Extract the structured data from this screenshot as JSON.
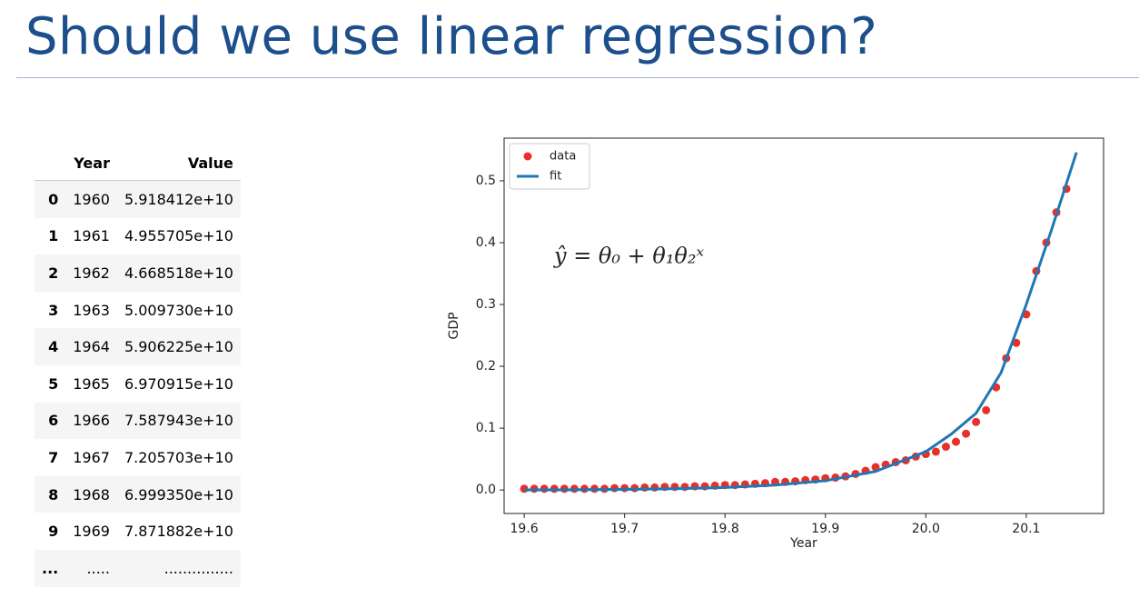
{
  "title": "Should we use linear regression?",
  "table": {
    "columns": [
      "",
      "Year",
      "Value"
    ],
    "rows": [
      [
        "0",
        "1960",
        "5.918412e+10"
      ],
      [
        "1",
        "1961",
        "4.955705e+10"
      ],
      [
        "2",
        "1962",
        "4.668518e+10"
      ],
      [
        "3",
        "1963",
        "5.009730e+10"
      ],
      [
        "4",
        "1964",
        "5.906225e+10"
      ],
      [
        "5",
        "1965",
        "6.970915e+10"
      ],
      [
        "6",
        "1966",
        "7.587943e+10"
      ],
      [
        "7",
        "1967",
        "7.205703e+10"
      ],
      [
        "8",
        "1968",
        "6.999350e+10"
      ],
      [
        "9",
        "1969",
        "7.871882e+10"
      ],
      [
        "...",
        ".....",
        "..............."
      ]
    ]
  },
  "chart_data": {
    "type": "scatter",
    "x_label": "Year",
    "y_label": "GDP",
    "annotation": "ŷ = θ₀ + θ₁θ₂ˣ",
    "xlim": [
      19.58,
      20.177
    ],
    "ylim": [
      -0.038,
      0.569
    ],
    "xticks": [
      19.6,
      19.7,
      19.8,
      19.9,
      {
        "value": 20,
        "label": "20.0"
      },
      20.1
    ],
    "yticks": [
      {
        "value": 0,
        "label": "0.0"
      },
      0.1,
      0.2,
      0.3,
      0.4,
      0.5
    ],
    "legend": "upper left",
    "grid": false,
    "series": [
      {
        "name": "data",
        "type": "scatter",
        "color": "#e8302a",
        "x": [
          19.6,
          19.61,
          19.62,
          19.63,
          19.64,
          19.65,
          19.66,
          19.67,
          19.68,
          19.69,
          19.7,
          19.71,
          19.72,
          19.73,
          19.74,
          19.75,
          19.76,
          19.77,
          19.78,
          19.79,
          19.8,
          19.81,
          19.82,
          19.83,
          19.84,
          19.85,
          19.86,
          19.87,
          19.88,
          19.89,
          19.9,
          19.91,
          19.92,
          19.93,
          19.94,
          19.95,
          19.96,
          19.97,
          19.98,
          19.99,
          20,
          20.01,
          20.02,
          20.03,
          20.04,
          20.05,
          20.06,
          20.07,
          20.08,
          20.09,
          20.1,
          20.11,
          20.12,
          20.13,
          20.14
        ],
        "values": [
          0.002,
          0.002,
          0.002,
          0.002,
          0.002,
          0.002,
          0.002,
          0.002,
          0.002,
          0.003,
          0.003,
          0.003,
          0.004,
          0.004,
          0.005,
          0.005,
          0.005,
          0.006,
          0.006,
          0.007,
          0.008,
          0.008,
          0.009,
          0.01,
          0.011,
          0.013,
          0.013,
          0.014,
          0.016,
          0.017,
          0.019,
          0.02,
          0.022,
          0.026,
          0.031,
          0.037,
          0.041,
          0.045,
          0.048,
          0.054,
          0.058,
          0.062,
          0.07,
          0.078,
          0.091,
          0.11,
          0.129,
          0.166,
          0.213,
          0.238,
          0.284,
          0.354,
          0.4,
          0.449,
          0.487
        ]
      },
      {
        "name": "fit",
        "type": "line",
        "color": "#1f77b4",
        "x": [
          19.6,
          19.65,
          19.7,
          19.75,
          19.8,
          19.85,
          19.9,
          19.95,
          20,
          20.025,
          20.05,
          20.075,
          20.1,
          20.125,
          20.15
        ],
        "values": [
          0,
          0.0003,
          0.001,
          0.002,
          0.004,
          0.008,
          0.015,
          0.03,
          0.062,
          0.09,
          0.124,
          0.19,
          0.3,
          0.42,
          0.546
        ]
      }
    ]
  }
}
